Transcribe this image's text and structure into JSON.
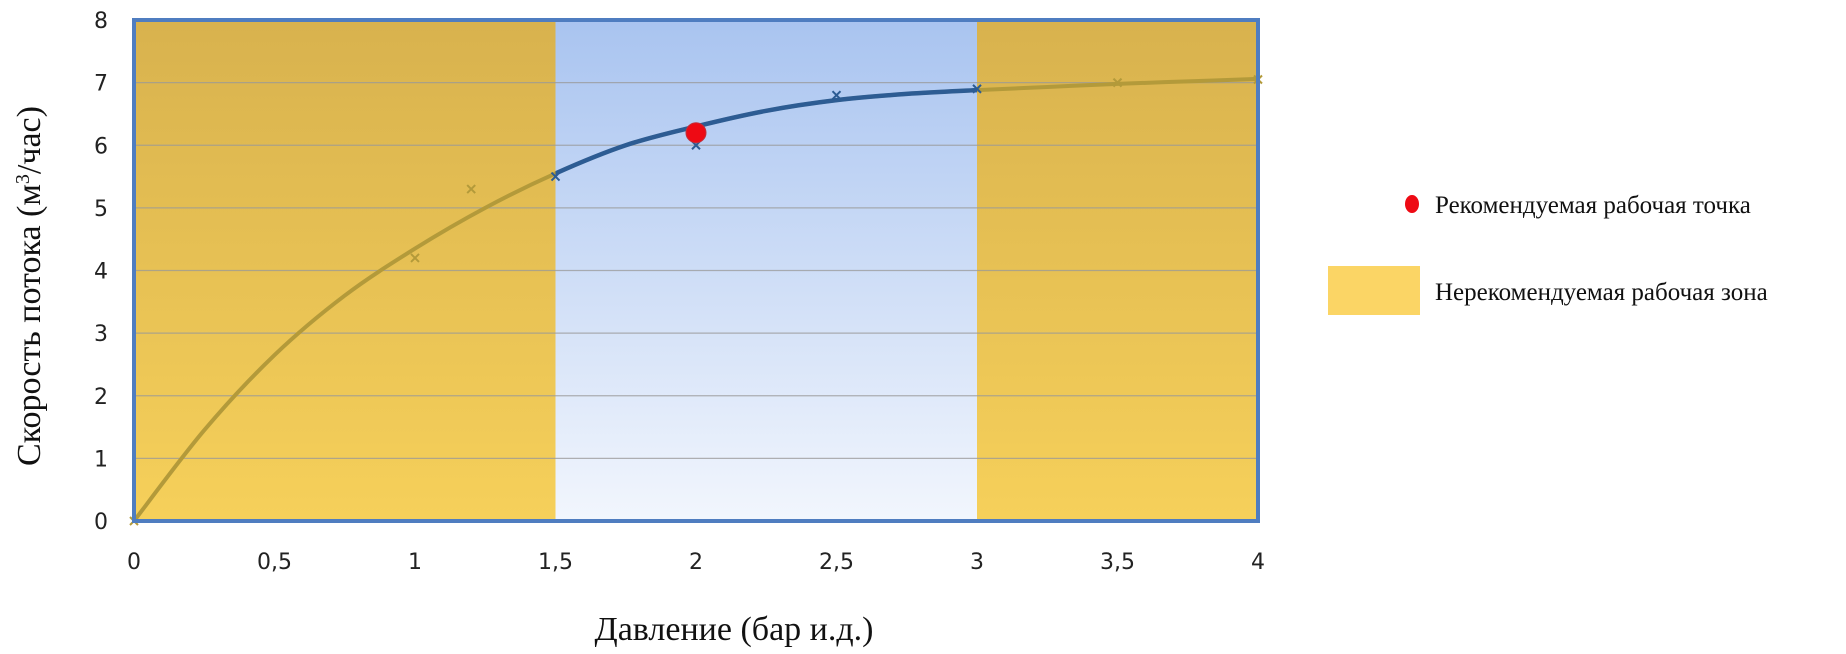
{
  "chart_data": {
    "type": "line",
    "title": "",
    "xlabel": "Давление (бар и.д.)",
    "ylabel_main": "Скорость потока (м",
    "ylabel_sup": "3",
    "ylabel_end": "/час)",
    "xlim": [
      0,
      4
    ],
    "ylim": [
      0,
      8
    ],
    "x_ticks": [
      {
        "value": 0,
        "label": "0"
      },
      {
        "value": 0.5,
        "label": "0,5"
      },
      {
        "value": 1,
        "label": "1"
      },
      {
        "value": 1.5,
        "label": "1,5"
      },
      {
        "value": 2,
        "label": "2"
      },
      {
        "value": 2.5,
        "label": "2,5"
      },
      {
        "value": 3,
        "label": "3"
      },
      {
        "value": 3.5,
        "label": "3,5"
      },
      {
        "value": 4,
        "label": "4"
      }
    ],
    "y_ticks": [
      {
        "value": 0,
        "label": "0"
      },
      {
        "value": 1,
        "label": "1"
      },
      {
        "value": 2,
        "label": "2"
      },
      {
        "value": 3,
        "label": "3"
      },
      {
        "value": 4,
        "label": "4"
      },
      {
        "value": 5,
        "label": "5"
      },
      {
        "value": 6,
        "label": "6"
      },
      {
        "value": 7,
        "label": "7"
      },
      {
        "value": 8,
        "label": "8"
      }
    ],
    "grid": true,
    "curve": {
      "x": [
        0,
        0.25,
        0.5,
        0.75,
        1,
        1.25,
        1.5,
        1.75,
        2,
        2.25,
        2.5,
        2.75,
        3,
        3.25,
        3.5,
        3.75,
        4
      ],
      "y": [
        0,
        1.45,
        2.65,
        3.6,
        4.35,
        5.0,
        5.55,
        6.0,
        6.3,
        6.55,
        6.72,
        6.82,
        6.88,
        6.93,
        6.98,
        7.02,
        7.06
      ]
    },
    "markers": {
      "x": [
        0,
        1,
        1.2,
        1.5,
        2,
        2.5,
        3,
        3.5,
        4
      ],
      "y": [
        0,
        4.2,
        5.3,
        5.5,
        6.0,
        6.8,
        6.9,
        7.0,
        7.05
      ]
    },
    "recommended_point": {
      "x": 2,
      "y": 6.2
    },
    "not_recommended_zones": [
      [
        0,
        1.5
      ],
      [
        3,
        4
      ]
    ],
    "colors": {
      "zone": "#f2ca4c",
      "zone_legend": "#fbd565",
      "recommended_area_top": "#a9c4f0",
      "recommended_area_bottom": "#f2f6fd",
      "curve_in_zone": "#b39a3a",
      "curve_recommended": "#2d5c93",
      "frame": "#4f7dc0",
      "point": "#ee0a14",
      "grid": "#999999"
    },
    "legend": [
      {
        "label": "Рекомендуемая рабочая точка",
        "kind": "point"
      },
      {
        "label": "Нерекомендуемая рабочая зона",
        "kind": "zone"
      }
    ]
  }
}
